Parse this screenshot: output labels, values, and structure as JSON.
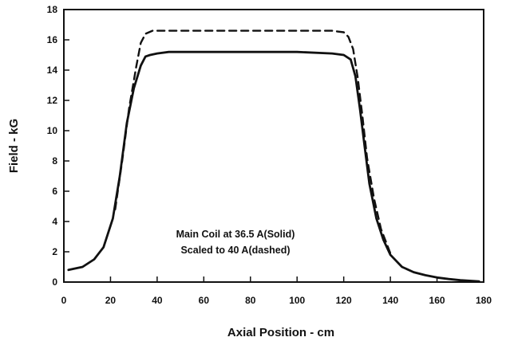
{
  "chart_data": {
    "type": "line",
    "title": "",
    "xlabel": "Axial Position - cm",
    "ylabel": "Field - kG",
    "xlim": [
      0,
      180
    ],
    "ylim": [
      0,
      18
    ],
    "xticks": [
      0,
      20,
      40,
      60,
      80,
      100,
      120,
      140,
      160,
      180
    ],
    "yticks": [
      0,
      2,
      4,
      6,
      8,
      10,
      12,
      14,
      16,
      18
    ],
    "grid": false,
    "annotations": [
      "Main Coil at 36.5 A(Solid)",
      "Scaled to 40 A(dashed)"
    ],
    "series": [
      {
        "style": "solid",
        "x": [
          2,
          8,
          13,
          17,
          21,
          24,
          27,
          30,
          33,
          35,
          37,
          40,
          45,
          60,
          80,
          100,
          115,
          120,
          123,
          125,
          127,
          129,
          131,
          134,
          137,
          140,
          145,
          150,
          155,
          160,
          165,
          170,
          178
        ],
        "y": [
          0.8,
          1.0,
          1.5,
          2.3,
          4.2,
          7.0,
          10.5,
          12.8,
          14.3,
          14.9,
          15.0,
          15.1,
          15.2,
          15.2,
          15.2,
          15.2,
          15.1,
          15.0,
          14.7,
          13.6,
          11.4,
          8.9,
          6.5,
          4.2,
          2.8,
          1.8,
          1.0,
          0.65,
          0.45,
          0.3,
          0.2,
          0.12,
          0.05
        ]
      },
      {
        "style": "dashed",
        "x": [
          22,
          25,
          28,
          31,
          33,
          35,
          38,
          45,
          60,
          80,
          100,
          115,
          120,
          122,
          124,
          126,
          128,
          130,
          133,
          136,
          140
        ],
        "y": [
          4.8,
          8.0,
          11.5,
          14.2,
          15.8,
          16.4,
          16.6,
          16.6,
          16.6,
          16.6,
          16.6,
          16.6,
          16.5,
          16.2,
          15.4,
          13.5,
          11.0,
          8.2,
          5.5,
          3.5,
          1.9
        ]
      }
    ]
  }
}
